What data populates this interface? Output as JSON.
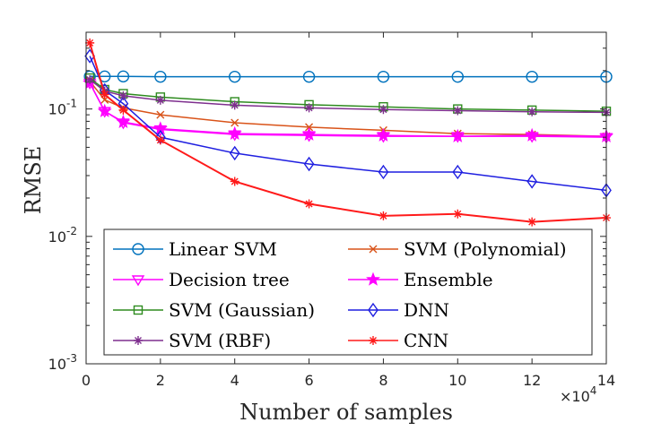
{
  "chart_data": {
    "type": "line",
    "xlabel": "Number of samples",
    "ylabel": "RMSE",
    "x_exponent_base": "×10",
    "x_exponent_power": "4",
    "xlim": [
      0,
      14
    ],
    "xticks": [
      "0",
      "2",
      "4",
      "6",
      "8",
      "10",
      "12",
      "14"
    ],
    "ylim": [
      0.001,
      0.4
    ],
    "yscale": "log",
    "yticks": [
      {
        "base": "10",
        "exp": "-3",
        "value": 0.001
      },
      {
        "base": "10",
        "exp": "-2",
        "value": 0.01
      },
      {
        "base": "10",
        "exp": "-1",
        "value": 0.1
      }
    ],
    "grid": false,
    "legend_position": "lower-center",
    "series": [
      {
        "name": "Linear SVM",
        "color": "#0072BD",
        "marker": "circle",
        "x": [
          0.1,
          0.5,
          1,
          2,
          4,
          6,
          8,
          10,
          12,
          14
        ],
        "y": [
          0.18,
          0.18,
          0.18,
          0.179,
          0.179,
          0.179,
          0.179,
          0.179,
          0.179,
          0.179
        ]
      },
      {
        "name": "SVM (Polynomial)",
        "color": "#D95319",
        "marker": "x",
        "x": [
          0.1,
          0.5,
          1,
          2,
          4,
          6,
          8,
          10,
          12,
          14
        ],
        "y": [
          0.165,
          0.118,
          0.102,
          0.09,
          0.078,
          0.072,
          0.068,
          0.064,
          0.063,
          0.061
        ]
      },
      {
        "name": "Decision tree",
        "color": "#FF00FF",
        "marker": "triangle-down",
        "x": [
          0.1,
          0.5,
          1,
          2,
          4,
          6,
          8,
          10,
          12,
          14
        ],
        "y": [
          0.16,
          0.096,
          0.078,
          0.069,
          0.063,
          0.062,
          0.061,
          0.061,
          0.061,
          0.06
        ]
      },
      {
        "name": "Ensemble",
        "color": "#FF00FF",
        "marker": "star",
        "x": [
          0.1,
          0.5,
          1,
          2,
          4,
          6,
          8,
          10,
          12,
          14
        ],
        "y": [
          0.16,
          0.096,
          0.079,
          0.07,
          0.064,
          0.063,
          0.062,
          0.061,
          0.062,
          0.061
        ]
      },
      {
        "name": "SVM (Gaussian)",
        "color": "#2E8B1F",
        "marker": "square",
        "x": [
          0.1,
          0.5,
          1,
          2,
          4,
          6,
          8,
          10,
          12,
          14
        ],
        "y": [
          0.175,
          0.142,
          0.132,
          0.124,
          0.114,
          0.108,
          0.104,
          0.1,
          0.098,
          0.096
        ]
      },
      {
        "name": "DNN",
        "color": "#1F1FE0",
        "marker": "diamond",
        "x": [
          0.1,
          0.5,
          1,
          2,
          4,
          6,
          8,
          10,
          12,
          14
        ],
        "y": [
          0.26,
          0.14,
          0.11,
          0.06,
          0.045,
          0.037,
          0.032,
          0.032,
          0.027,
          0.023
        ]
      },
      {
        "name": "SVM (RBF)",
        "color": "#7E2F8E",
        "marker": "asterisk",
        "x": [
          0.1,
          0.5,
          1,
          2,
          4,
          6,
          8,
          10,
          12,
          14
        ],
        "y": [
          0.17,
          0.138,
          0.127,
          0.117,
          0.107,
          0.102,
          0.099,
          0.097,
          0.095,
          0.094
        ]
      },
      {
        "name": "CNN",
        "color": "#FF1A1A",
        "marker": "asterisk",
        "x": [
          0.1,
          0.5,
          1,
          2,
          4,
          6,
          8,
          10,
          12,
          14
        ],
        "y": [
          0.33,
          0.13,
          0.098,
          0.057,
          0.027,
          0.018,
          0.0145,
          0.015,
          0.013,
          0.014
        ]
      }
    ]
  }
}
